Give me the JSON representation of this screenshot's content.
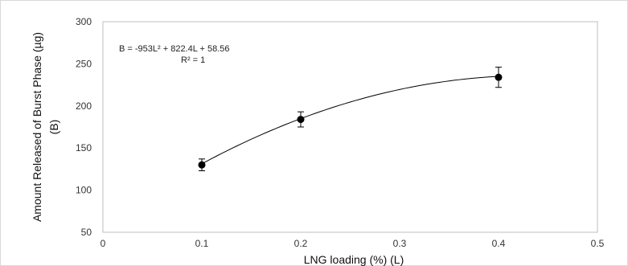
{
  "chart_data": {
    "type": "scatter",
    "xlabel": "LNG loading (%) (L)",
    "ylabel_lines": [
      "Amount Released of Burst Phase (µg)",
      "(B)"
    ],
    "xlim": [
      0,
      0.5
    ],
    "ylim": [
      50,
      300
    ],
    "x_ticks": [
      "0",
      "0.1",
      "0.2",
      "0.3",
      "0.4",
      "0.5"
    ],
    "y_ticks": [
      "50",
      "100",
      "150",
      "200",
      "250",
      "300"
    ],
    "grid": false,
    "series": [
      {
        "points": [
          {
            "x": 0.1,
            "y": 130,
            "err": 7
          },
          {
            "x": 0.2,
            "y": 184,
            "err": 9
          },
          {
            "x": 0.4,
            "y": 234,
            "err": 12
          }
        ],
        "color": "#000000"
      }
    ],
    "trendline": {
      "type": "polynomial",
      "coefficients": [
        -953,
        822.4,
        58.56
      ],
      "domain": [
        0.1,
        0.4
      ]
    },
    "annotations": [
      "B = -953L² + 822.4L + 58.56",
      "R² = 1"
    ]
  }
}
